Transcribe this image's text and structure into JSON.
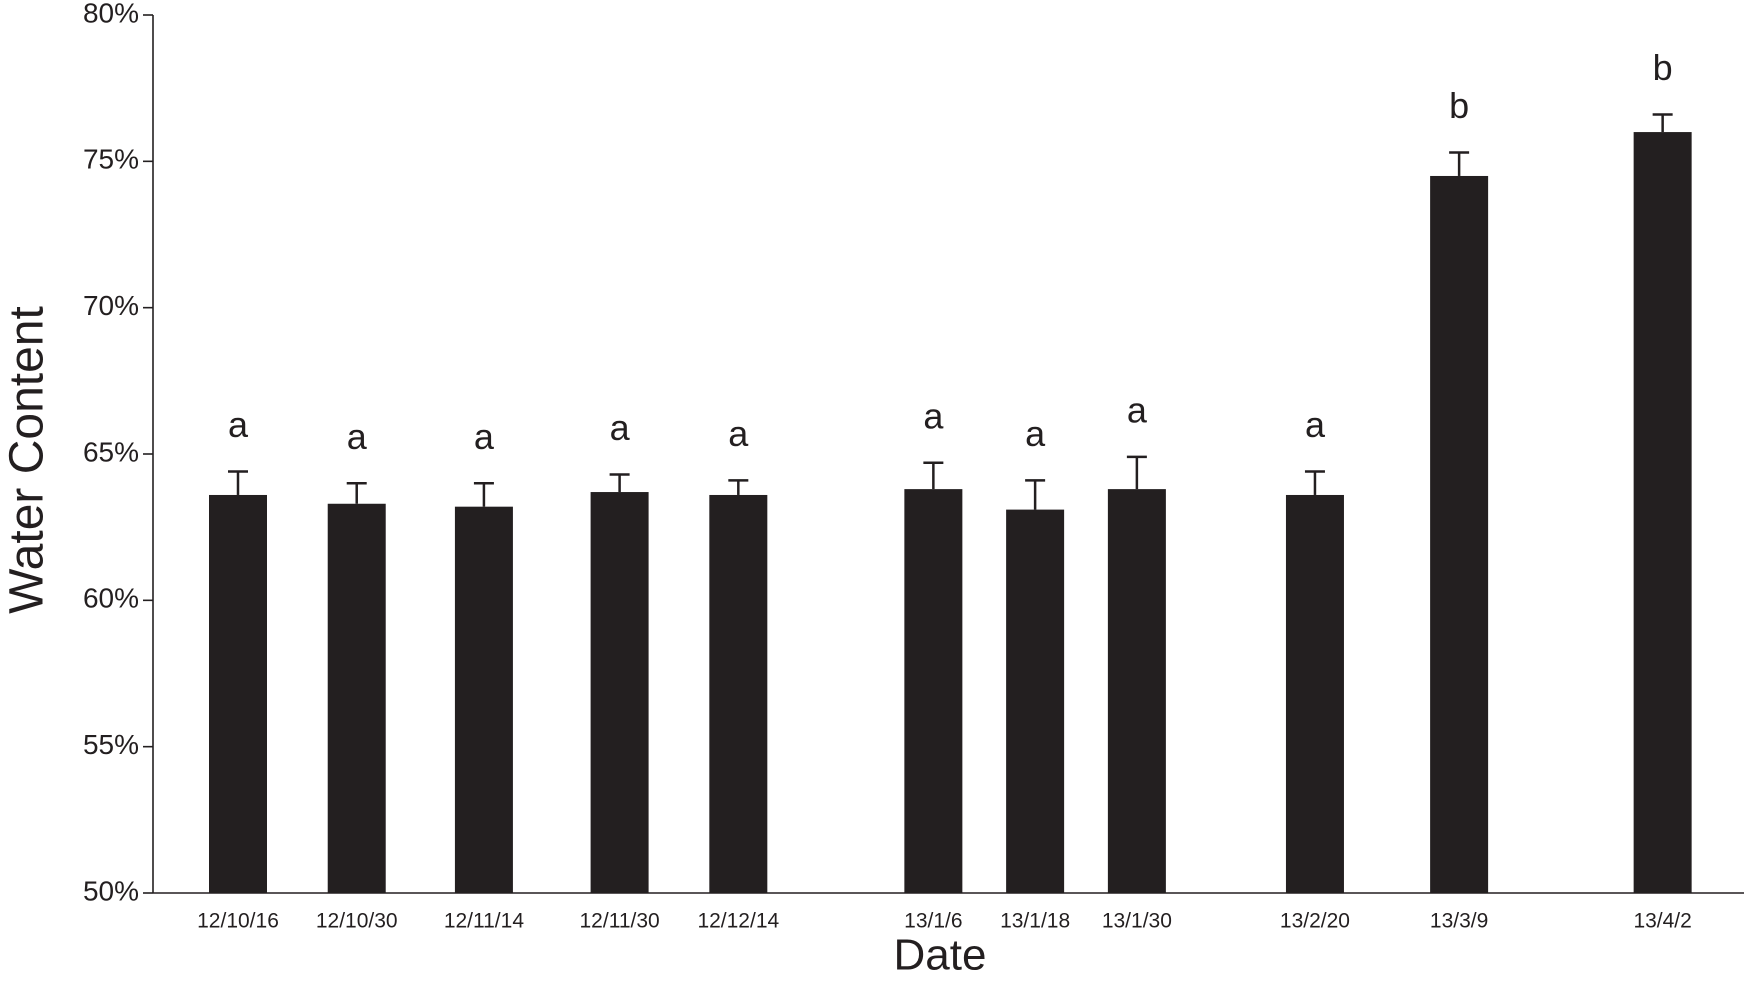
{
  "chart_data": {
    "type": "bar",
    "x_label": "Date",
    "y_label": "Water Content",
    "categories": [
      "12/10/16",
      "12/10/30",
      "12/11/14",
      "12/11/30",
      "12/12/14",
      "13/1/6",
      "13/1/18",
      "13/1/30",
      "13/2/20",
      "13/3/9",
      "13/4/2"
    ],
    "values": [
      63.6,
      63.3,
      63.2,
      63.7,
      63.6,
      63.8,
      63.1,
      63.8,
      63.6,
      74.5,
      76.0
    ],
    "errors": [
      0.8,
      0.7,
      0.8,
      0.6,
      0.5,
      0.9,
      1.0,
      1.1,
      0.8,
      0.8,
      0.6
    ],
    "annotations": [
      "a",
      "a",
      "a",
      "a",
      "a",
      "a",
      "a",
      "a",
      "a",
      "b",
      "b"
    ],
    "color": "#231f20",
    "ylim": [
      50,
      80
    ],
    "yticks": [
      {
        "value": 50,
        "label": "50%"
      },
      {
        "value": 55,
        "label": "55%"
      },
      {
        "value": 60,
        "label": "60%"
      },
      {
        "value": 65,
        "label": "65%"
      },
      {
        "value": 70,
        "label": "70%"
      },
      {
        "value": 75,
        "label": "75%"
      },
      {
        "value": 80,
        "label": "80%"
      }
    ],
    "grid": false
  }
}
